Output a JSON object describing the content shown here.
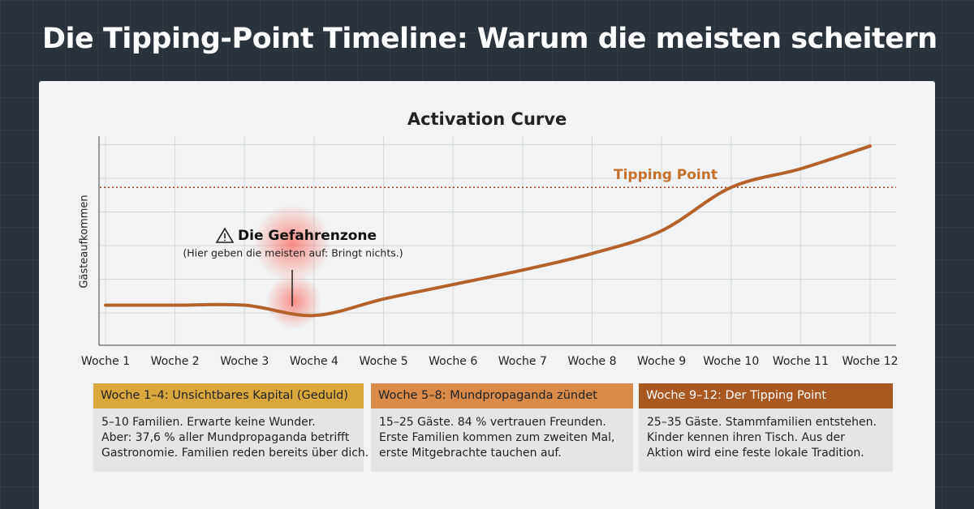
{
  "heading": "Die Tipping-Point Timeline: Warum die meisten scheitern",
  "chart_data": {
    "type": "line",
    "title": "Activation Curve",
    "y_label": "Gästeaufkommen",
    "categories": [
      "Woche 1",
      "Woche 2",
      "Woche 3",
      "Woche 4",
      "Woche 5",
      "Woche 6",
      "Woche 7",
      "Woche 8",
      "Woche 9",
      "Woche 10",
      "Woche 11",
      "Woche 12"
    ],
    "values": [
      19,
      19,
      19,
      14,
      22,
      29,
      36,
      44,
      55,
      76,
      85,
      96
    ],
    "ylim": [
      0,
      100
    ],
    "color": "#b5622a",
    "threshold": {
      "value": 76,
      "label": "Tipping Point"
    },
    "annotation": {
      "title": "Die Gefahrenzone",
      "text": "(Hier geben die meisten auf: Bringt nichts.)"
    }
  },
  "phases": [
    {
      "title": "Woche 1–4: Unsichtbares Kapital (Geduld)",
      "lines": [
        "5–10 Familien. Erwarte keine Wunder.",
        "Aber: 37,6 % aller Mundpropaganda betrifft",
        "Gastronomie. Familien reden bereits über dich."
      ]
    },
    {
      "title": "Woche 5–8: Mundpropaganda zündet",
      "lines": [
        "15–25 Gäste. 84 % vertrauen Freunden.",
        "Erste Familien kommen zum zweiten Mal,",
        "erste Mitgebrachte tauchen auf."
      ]
    },
    {
      "title": "Woche 9–12: Der Tipping Point",
      "lines": [
        "25–35 Gäste. Stammfamilien entstehen.",
        "Kinder kennen ihren Tisch. Aus der",
        "Aktion wird eine feste lokale Tradition."
      ]
    }
  ]
}
